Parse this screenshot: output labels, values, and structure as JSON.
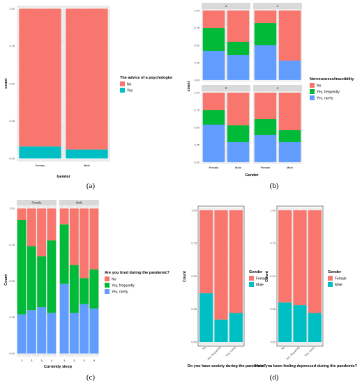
{
  "colors": {
    "panel_bg": "#ebebeb",
    "grid": "#ffffff",
    "strip_bg": "#d9d9d9",
    "red": "#f8766d",
    "green": "#00ba38",
    "blue": "#619cff",
    "cyan": "#00bfc4"
  },
  "chart_data": [
    {
      "id": "a",
      "type": "bar",
      "caption": "(a)",
      "xlabel": "Gender",
      "ylabel": "count",
      "categories": [
        "Female",
        "Male"
      ],
      "ylim": [
        0,
        1
      ],
      "yticks": [
        "0.00",
        "0.25",
        "0.50",
        "0.75",
        "1.00"
      ],
      "series": [
        {
          "name": "No",
          "values": [
            0.92,
            0.94
          ]
        },
        {
          "name": "Yes",
          "values": [
            0.08,
            0.06
          ]
        }
      ],
      "legend": {
        "title": "The advice of a psychologist",
        "position": "right"
      }
    },
    {
      "id": "b",
      "type": "bar",
      "caption": "(b)",
      "xlabel": "Gender",
      "ylabel": "count",
      "facets": [
        "1",
        "2",
        "3",
        "4"
      ],
      "categories": [
        "Female",
        "Male"
      ],
      "ylim": [
        0,
        1
      ],
      "yticks": [
        "0.00",
        "0.25",
        "0.50",
        "0.75",
        "1.00"
      ],
      "series": [
        {
          "name": "No",
          "values": [
            [
              0.25,
              0.45
            ],
            [
              0.18,
              0.72
            ],
            [
              0.25,
              0.47
            ],
            [
              0.38,
              0.54
            ]
          ]
        },
        {
          "name": "Yes, frequently",
          "values": [
            [
              0.33,
              0.19
            ],
            [
              0.32,
              0.0
            ],
            [
              0.21,
              0.24
            ],
            [
              0.23,
              0.17
            ]
          ]
        },
        {
          "name": "Yes, rarely",
          "values": [
            [
              0.42,
              0.36
            ],
            [
              0.5,
              0.28
            ],
            [
              0.54,
              0.29
            ],
            [
              0.39,
              0.29
            ]
          ]
        }
      ],
      "legend": {
        "title": "Nervousness/irascibility",
        "position": "right"
      }
    },
    {
      "id": "c",
      "type": "bar",
      "caption": "(c)",
      "xlabel": "Currently sleep",
      "ylabel": "Count",
      "facets": [
        "Female",
        "Male"
      ],
      "categories": [
        "1",
        "2",
        "3",
        "4"
      ],
      "ylim": [
        0,
        1
      ],
      "yticks": [
        "0.00",
        "0.25",
        "0.50",
        "0.75",
        "1.00"
      ],
      "series": [
        {
          "name": "No",
          "values": [
            [
              0.08,
              0.26,
              0.33,
              0.22
            ],
            [
              0.11,
              0.39,
              0.48,
              0.42
            ]
          ]
        },
        {
          "name": "Yes, frequently",
          "values": [
            [
              0.65,
              0.44,
              0.35,
              0.5
            ],
            [
              0.41,
              0.33,
              0.18,
              0.27
            ]
          ]
        },
        {
          "name": "Yes, rarely",
          "values": [
            [
              0.27,
              0.3,
              0.32,
              0.28
            ],
            [
              0.48,
              0.28,
              0.34,
              0.31
            ]
          ]
        }
      ],
      "legend": {
        "title": "Are you tired during the pandemic?",
        "position": "right"
      }
    },
    {
      "id": "d1",
      "type": "bar",
      "xlabel": "Do you have anxiety during the pandemic?",
      "ylabel": "Count",
      "categories": [
        "No",
        "Yes, frequently",
        "Yes, rarely"
      ],
      "ylim": [
        0,
        1
      ],
      "yticks": [
        "0.00",
        "0.25",
        "0.50",
        "0.75",
        "1.00"
      ],
      "series": [
        {
          "name": "Female",
          "values": [
            0.63,
            0.83,
            0.78
          ]
        },
        {
          "name": "Male",
          "values": [
            0.37,
            0.17,
            0.22
          ]
        }
      ],
      "legend": {
        "title": "Gender",
        "position": "right"
      }
    },
    {
      "id": "d2",
      "type": "bar",
      "caption": "(d)",
      "xlabel": "Have you been feeling depressed during the pandemic?",
      "ylabel": "",
      "categories": [
        "No",
        "Yes, frequently",
        "Yes, rarely"
      ],
      "ylim": [
        0,
        1
      ],
      "yticks": [
        "0.00",
        "0.25",
        "0.50",
        "0.75",
        "1.00"
      ],
      "series": [
        {
          "name": "Female",
          "values": [
            0.7,
            0.72,
            0.78
          ]
        },
        {
          "name": "Male",
          "values": [
            0.3,
            0.28,
            0.22
          ]
        }
      ],
      "legend": {
        "title": "Gender",
        "position": "right"
      }
    }
  ]
}
